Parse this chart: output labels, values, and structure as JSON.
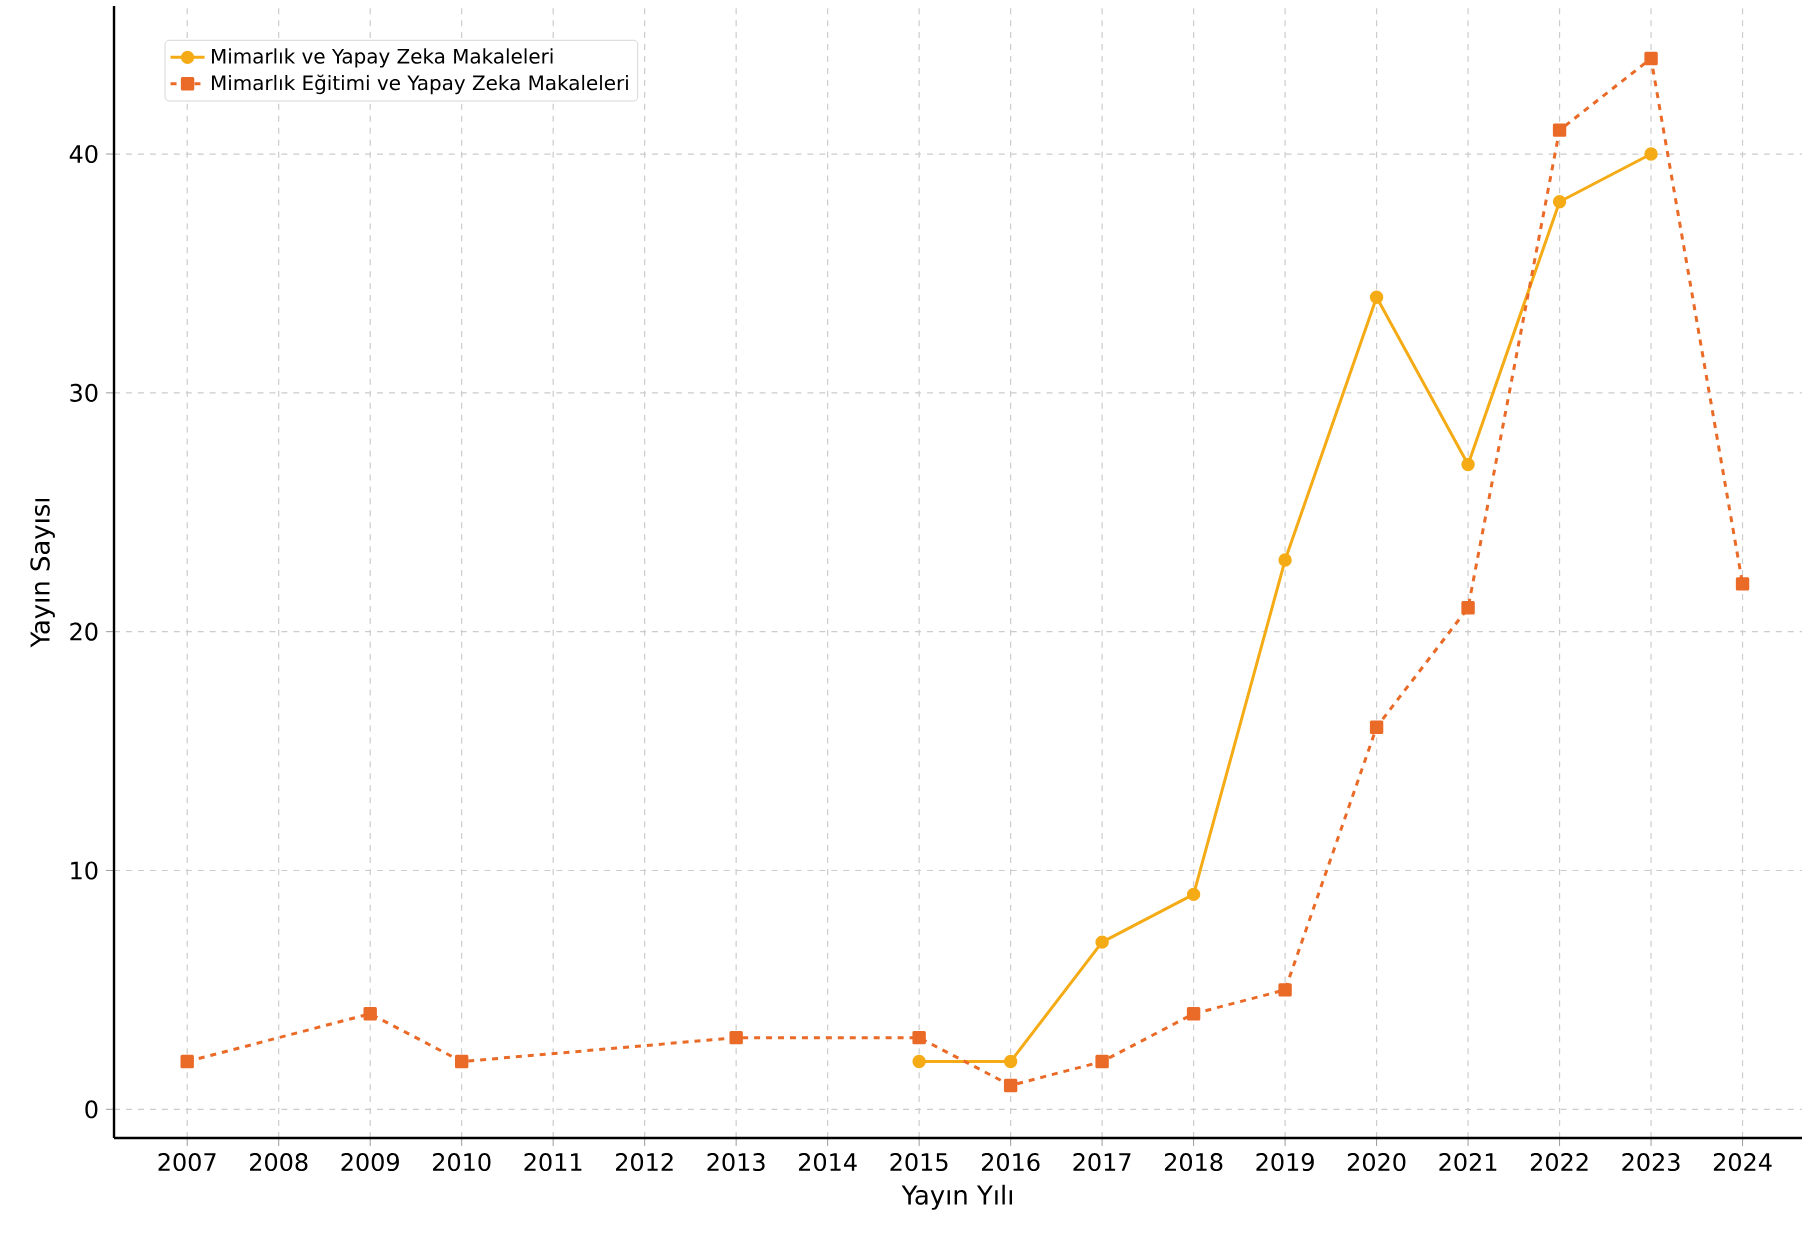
{
  "chart_data": {
    "type": "line",
    "xlabel": "Yayın Yılı",
    "ylabel": "Yayın Sayısı",
    "xlim": [
      2006.2,
      2024.65
    ],
    "ylim": [
      -1.2,
      46.2
    ],
    "xticks": [
      2007,
      2008,
      2009,
      2010,
      2011,
      2012,
      2013,
      2014,
      2015,
      2016,
      2017,
      2018,
      2019,
      2020,
      2021,
      2022,
      2023,
      2024
    ],
    "yticks": [
      0,
      10,
      20,
      30,
      40
    ],
    "grid": true,
    "legend": "top left",
    "series": [
      {
        "name": "Mimarlık ve Yapay Zeka Makaleleri",
        "color": "#f5ab16",
        "marker": "circle",
        "line_style": "solid",
        "x": [
          2015,
          2016,
          2017,
          2018,
          2019,
          2020,
          2021,
          2022,
          2023
        ],
        "values": [
          2,
          2,
          7,
          9,
          23,
          34,
          27,
          38,
          40
        ]
      },
      {
        "name": "Mimarlık Eğitimi ve Yapay Zeka Makaleleri",
        "color": "#ea6a27",
        "marker": "square",
        "line_style": "dashed",
        "x": [
          2007,
          2009,
          2010,
          2013,
          2015,
          2016,
          2017,
          2018,
          2019,
          2020,
          2021,
          2022,
          2023,
          2024
        ],
        "values": [
          2,
          4,
          2,
          3,
          3,
          1,
          2,
          4,
          5,
          16,
          21,
          41,
          44,
          22
        ]
      }
    ]
  }
}
